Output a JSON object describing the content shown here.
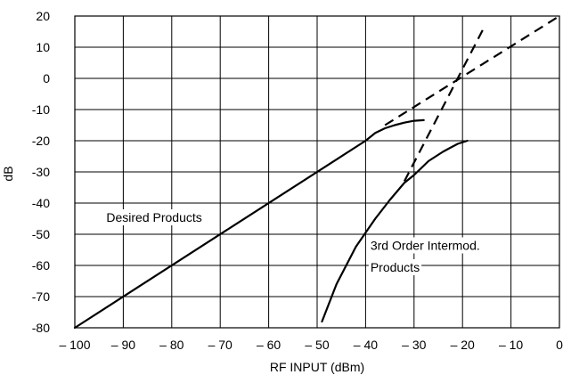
{
  "chart_data": {
    "type": "line",
    "xlabel": "RF INPUT (dBm)",
    "ylabel": "dB",
    "xlim": [
      -100,
      0
    ],
    "ylim": [
      -80,
      20
    ],
    "x_ticks": [
      -100,
      -90,
      -80,
      -70,
      -60,
      -50,
      -40,
      -30,
      -20,
      -10,
      0
    ],
    "y_ticks": [
      20,
      10,
      0,
      -10,
      -20,
      -30,
      -40,
      -50,
      -60,
      -70,
      -80
    ],
    "x_tick_labels": [
      "– 100",
      "– 90",
      "– 80",
      "– 70",
      "– 60",
      "– 50",
      "– 40",
      "– 30",
      "– 20",
      "– 10",
      "0"
    ],
    "y_tick_labels": [
      "20",
      "10",
      "0",
      "-10",
      "-20",
      "-30",
      "-40",
      "-50",
      "-60",
      "-70",
      "-80"
    ],
    "grid": true,
    "series": [
      {
        "style": "solid",
        "points": [
          [
            -100,
            -80
          ],
          [
            -40,
            -20
          ],
          [
            -38,
            -17.5
          ],
          [
            -36,
            -16
          ],
          [
            -34,
            -15
          ],
          [
            -32,
            -14.2
          ],
          [
            -30,
            -13.6
          ],
          [
            -28,
            -13.4
          ]
        ]
      },
      {
        "style": "dashed",
        "points": [
          [
            -36,
            -15
          ],
          [
            0,
            20
          ]
        ]
      },
      {
        "style": "solid",
        "points": [
          [
            -49,
            -78
          ],
          [
            -46,
            -66
          ],
          [
            -42,
            -54
          ],
          [
            -38,
            -45
          ],
          [
            -35,
            -39
          ],
          [
            -32,
            -33.5
          ],
          [
            -30,
            -31
          ],
          [
            -27,
            -26.5
          ],
          [
            -24,
            -23.5
          ],
          [
            -21,
            -21
          ],
          [
            -19,
            -20
          ]
        ]
      },
      {
        "style": "dashed",
        "points": [
          [
            -32,
            -33
          ],
          [
            -15.5,
            16.5
          ]
        ]
      }
    ],
    "annotations": [
      {
        "text": "Desired Products",
        "x": -93.5,
        "y": -46
      },
      {
        "text": "3rd Order Intermod.",
        "x": -39,
        "y": -55
      },
      {
        "text": "Products",
        "x": -39,
        "y": -62
      }
    ]
  }
}
